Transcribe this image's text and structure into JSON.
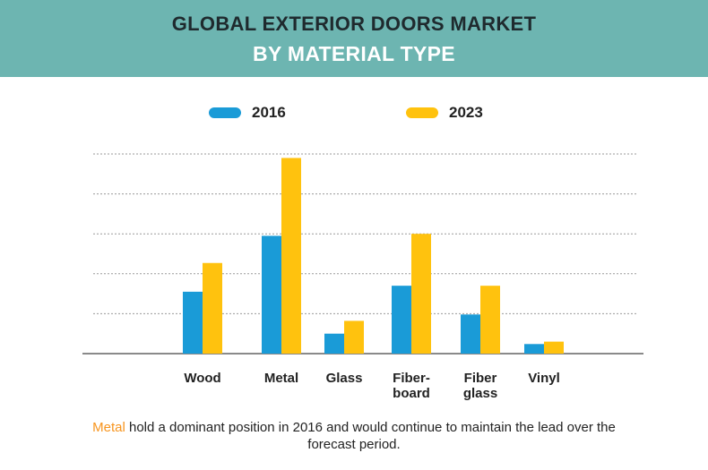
{
  "header": {
    "title_line1": "GLOBAL EXTERIOR DOORS MARKET",
    "title_line2": "BY MATERIAL TYPE",
    "background_color": "#6db5b1"
  },
  "chart_data": {
    "type": "bar",
    "categories": [
      "Wood",
      "Metal",
      "Glass",
      "Fiber-board",
      "Fiber glass",
      "Vinyl"
    ],
    "category_label_lines": [
      [
        "Wood"
      ],
      [
        "Metal"
      ],
      [
        "Glass"
      ],
      [
        "Fiber-",
        "board"
      ],
      [
        "Fiber",
        "glass"
      ],
      [
        "Vinyl"
      ]
    ],
    "series": [
      {
        "name": "2016",
        "color": "#1a9bd7",
        "values": [
          1.55,
          2.95,
          0.5,
          1.7,
          0.98,
          0.24
        ]
      },
      {
        "name": "2023",
        "color": "#ffc20e",
        "values": [
          2.27,
          4.9,
          0.82,
          3.0,
          1.7,
          0.3
        ]
      }
    ],
    "ylim": [
      0,
      5
    ],
    "grid": true,
    "legend_position": "top-center",
    "axis_tick_labels_shown": false
  },
  "footnote": {
    "highlight": "Metal",
    "highlight_color": "#f7941d",
    "text": " hold a dominant position in 2016 and would continue to maintain the lead over the forecast period."
  }
}
